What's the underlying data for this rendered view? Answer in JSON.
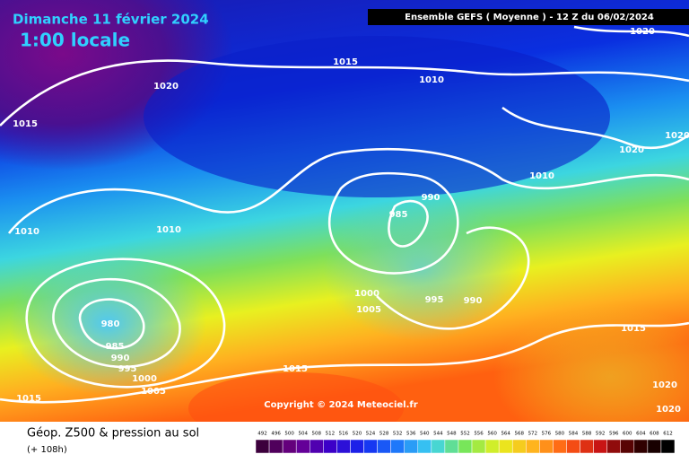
{
  "header": {
    "date": "Dimanche 11 février 2024",
    "time": "1:00 locale",
    "model": "Ensemble GEFS  ( Moyenne )  -  12 Z du 06/02/2024"
  },
  "isobar_labels": [
    "1015",
    "1010",
    "1020",
    "1015",
    "1020",
    "1020",
    "1020",
    "1010",
    "990",
    "985",
    "1010",
    "1010",
    "1000",
    "1005",
    "995",
    "990",
    "980",
    "985",
    "990",
    "995",
    "1000",
    "1005",
    "1015",
    "1015",
    "1015",
    "1020",
    "1020"
  ],
  "copyright": "Copyright © 2024 Meteociel.fr",
  "footer": {
    "title": "Géop. Z500 & pression au sol",
    "lead": "(+ 108h)"
  },
  "scale": [
    492,
    496,
    500,
    504,
    508,
    512,
    516,
    520,
    524,
    528,
    532,
    536,
    540,
    544,
    548,
    552,
    556,
    560,
    564,
    568,
    572,
    576,
    580,
    584,
    588,
    592,
    596,
    600,
    604,
    608,
    612
  ]
}
